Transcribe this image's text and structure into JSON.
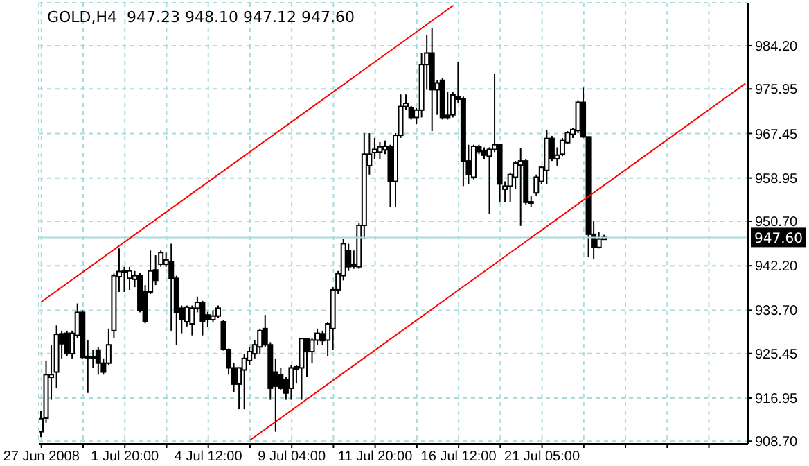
{
  "chart_data": {
    "type": "candlestick",
    "title": "GOLD,H4  947.23 948.10 947.12 947.60",
    "categories": [
      "27 Jun 2008",
      null,
      null,
      null,
      null,
      null,
      null,
      null,
      null,
      null,
      null,
      null,
      null,
      null,
      null,
      null,
      "1 Jul 20:00",
      null,
      null,
      null,
      null,
      null,
      null,
      null,
      null,
      null,
      null,
      null,
      null,
      null,
      null,
      null,
      "4 Jul 12:00",
      null,
      null,
      null,
      null,
      null,
      null,
      null,
      null,
      null,
      null,
      null,
      null,
      null,
      null,
      null,
      "9 Jul 04:00",
      null,
      null,
      null,
      null,
      null,
      null,
      null,
      null,
      null,
      null,
      null,
      null,
      null,
      null,
      null,
      "11 Jul 20:00",
      null,
      null,
      null,
      null,
      null,
      null,
      null,
      null,
      null,
      null,
      null,
      null,
      null,
      null,
      null,
      "16 Jul 12:00",
      null,
      null,
      null,
      null,
      null,
      null,
      null,
      null,
      null,
      null,
      null,
      null,
      null,
      null,
      null,
      "21 Jul 05:00",
      null,
      null,
      null,
      null,
      null,
      null,
      null,
      null,
      null,
      null,
      null,
      null,
      null,
      null,
      null,
      null,
      null,
      null,
      null,
      null,
      null,
      null,
      null,
      null,
      null,
      null,
      null,
      null,
      null,
      null,
      null,
      null,
      null,
      null,
      null,
      null,
      null,
      null,
      null
    ],
    "ohlc": [
      [
        910.5,
        914.5,
        909.5,
        913
      ],
      [
        913.1,
        924.1,
        912.2,
        921.4
      ],
      [
        920.9,
        927.1,
        916.6,
        921.4
      ],
      [
        921.9,
        930.8,
        918.8,
        929.1
      ],
      [
        929.2,
        929.8,
        924.5,
        927.3
      ],
      [
        929.3,
        929.8,
        925,
        925.4
      ],
      [
        925.4,
        929.8,
        924.5,
        929.3
      ],
      [
        928.9,
        935,
        928.4,
        933.3
      ],
      [
        933.3,
        933.7,
        924.5,
        924.7
      ],
      [
        924.9,
        928,
        917.9,
        924.7
      ],
      [
        924.8,
        926.2,
        922.7,
        924.7
      ],
      [
        926.1,
        926.7,
        921.4,
        923.6
      ],
      [
        923.6,
        924.5,
        921.4,
        921.9
      ],
      [
        923.6,
        930.2,
        923.2,
        927.1
      ],
      [
        929.8,
        940.7,
        928.4,
        940.3
      ],
      [
        940.1,
        945.5,
        937.2,
        941.1
      ],
      [
        941.2,
        942,
        937.2,
        941
      ],
      [
        939.8,
        942,
        937.6,
        941.2
      ],
      [
        939.6,
        941.2,
        938.1,
        940.3
      ],
      [
        940.3,
        940.8,
        933.3,
        933.7
      ],
      [
        937.2,
        938.5,
        931.2,
        931.5
      ],
      [
        937.2,
        945.1,
        936.8,
        941.2
      ],
      [
        941.4,
        944.2,
        938.5,
        939.4
      ],
      [
        942.5,
        945.1,
        942,
        944.7
      ],
      [
        942.5,
        944.7,
        942,
        943.3
      ],
      [
        942.9,
        946.4,
        929.8,
        939.8
      ],
      [
        939.8,
        940.3,
        927.1,
        933.3
      ],
      [
        934.1,
        934.6,
        929.3,
        931.9
      ],
      [
        931.5,
        934.6,
        930.6,
        934.3
      ],
      [
        931.1,
        934.6,
        928.9,
        934.1
      ],
      [
        934.1,
        936.3,
        933.3,
        935.2
      ],
      [
        935.2,
        935.5,
        928.9,
        931.5
      ],
      [
        932.8,
        933.4,
        930.5,
        931.9
      ],
      [
        931.9,
        933.7,
        931.5,
        932.6
      ],
      [
        932.6,
        934.6,
        932.2,
        934.1
      ],
      [
        931.5,
        931.8,
        926,
        926.2
      ],
      [
        926.2,
        926.4,
        921.4,
        922.7
      ],
      [
        922.7,
        923.6,
        918.1,
        919.6
      ],
      [
        919.6,
        922.8,
        914.8,
        922.7
      ],
      [
        922.3,
        925.4,
        914.8,
        924.5
      ],
      [
        924.1,
        926.7,
        923.2,
        925.8
      ],
      [
        925.4,
        928,
        924.5,
        927.1
      ],
      [
        926.7,
        930.2,
        925.4,
        929.8
      ],
      [
        930.2,
        932.8,
        926.7,
        927.1
      ],
      [
        927.1,
        927.6,
        916.6,
        918.8
      ],
      [
        921.9,
        924.5,
        910.5,
        919.2
      ],
      [
        921.4,
        922.7,
        918.4,
        918.8
      ],
      [
        920.5,
        921,
        916.6,
        917.9
      ],
      [
        918.8,
        923.2,
        916.6,
        922.7
      ],
      [
        922.5,
        923.2,
        919.7,
        922.9
      ],
      [
        922.7,
        928.4,
        916.6,
        928.3
      ],
      [
        928.2,
        928.4,
        921,
        925.8
      ],
      [
        925.8,
        928.4,
        923.6,
        928
      ],
      [
        928,
        930.2,
        927.1,
        929.3
      ],
      [
        929.2,
        929.8,
        927.1,
        927.9
      ],
      [
        928,
        931.5,
        924.9,
        931.1
      ],
      [
        930.2,
        938.1,
        926.2,
        937.6
      ],
      [
        937.6,
        941.2,
        936.8,
        940.7
      ],
      [
        940.3,
        947.3,
        939.4,
        946.4
      ],
      [
        945.1,
        946.4,
        941.2,
        942
      ],
      [
        942.5,
        945.1,
        941.6,
        942.1
      ],
      [
        942,
        950.4,
        941.6,
        949.9
      ],
      [
        949.9,
        967.5,
        947.4,
        963.5
      ],
      [
        961.3,
        967.5,
        959.6,
        963.5
      ],
      [
        963.8,
        966.6,
        962.6,
        964.4
      ],
      [
        963.9,
        965.8,
        962.6,
        964.9
      ],
      [
        964.3,
        966.1,
        963.5,
        965
      ],
      [
        965,
        965.3,
        953.4,
        958.3
      ],
      [
        958.3,
        967.5,
        953.4,
        967.1
      ],
      [
        967.1,
        974.9,
        966.6,
        972.6
      ],
      [
        972.6,
        974.9,
        971.9,
        973.2
      ],
      [
        972.3,
        972.7,
        970.1,
        970.5
      ],
      [
        970.5,
        972.3,
        969.2,
        971.9
      ],
      [
        971.9,
        982.8,
        970.5,
        980.6
      ],
      [
        980.6,
        986.3,
        975.8,
        982.8
      ],
      [
        982.8,
        987.6,
        967.9,
        975.8
      ],
      [
        975.8,
        977.6,
        971,
        977.1
      ],
      [
        977.6,
        978,
        970.1,
        970.5
      ],
      [
        970.9,
        975.4,
        970.1,
        970.5
      ],
      [
        971,
        975.4,
        970.5,
        974.8
      ],
      [
        974.5,
        981.1,
        973.3,
        974
      ],
      [
        974,
        974.5,
        957.4,
        962.2
      ],
      [
        962.2,
        965.3,
        957.8,
        959.6
      ],
      [
        959.1,
        965.3,
        958.7,
        965
      ],
      [
        965,
        965.3,
        963.5,
        964
      ],
      [
        964.1,
        964.8,
        962.6,
        963.3
      ],
      [
        963.1,
        964.8,
        952.1,
        964.4
      ],
      [
        964.4,
        978.9,
        963.9,
        965.3
      ],
      [
        965.3,
        965.5,
        954.3,
        957.8
      ],
      [
        956.8,
        958.3,
        954.3,
        957.4
      ],
      [
        957.4,
        960,
        954.3,
        959.6
      ],
      [
        959.1,
        962.2,
        956.9,
        961.8
      ],
      [
        961.4,
        964.6,
        949.8,
        962.2
      ],
      [
        962.2,
        962.6,
        953.9,
        954.3
      ],
      [
        954.2,
        955.6,
        953.4,
        954.4
      ],
      [
        956.1,
        959.6,
        955.6,
        959.1
      ],
      [
        958.3,
        961.3,
        957.8,
        961
      ],
      [
        960.4,
        968.1,
        957.8,
        966.5
      ],
      [
        966.5,
        967,
        962.2,
        962.6
      ],
      [
        962.6,
        964.8,
        961.3,
        963.3
      ],
      [
        963.5,
        966.6,
        963.1,
        966.1
      ],
      [
        965.7,
        967.9,
        965.5,
        967.6
      ],
      [
        967.3,
        968.5,
        966.6,
        968.2
      ],
      [
        968,
        973.8,
        967.5,
        973.4
      ],
      [
        973.4,
        976.2,
        966.6,
        966.8
      ],
      [
        966.8,
        966.9,
        943.8,
        948.2
      ],
      [
        948.2,
        950.8,
        943.4,
        945.7
      ],
      [
        945.7,
        948.6,
        945.5,
        947.3
      ],
      [
        947.23,
        948.1,
        947.12,
        947.6
      ],
      null,
      null,
      null,
      null,
      null,
      null,
      null,
      null,
      null,
      null,
      null,
      null,
      null,
      null,
      null,
      null,
      null,
      null,
      null,
      null,
      null,
      null,
      null,
      null,
      null,
      null,
      null
    ],
    "color": "#000000",
    "series": [
      {
        "type": "line",
        "color": "#ff0000",
        "values": [
          935.3,
          null,
          null,
          null,
          null,
          null,
          null,
          null,
          null,
          null,
          null,
          null,
          null,
          null,
          null,
          null,
          null,
          null,
          null,
          null,
          null,
          null,
          null,
          null,
          null,
          null,
          null,
          null,
          null,
          null,
          null,
          null,
          null,
          null,
          null,
          null,
          null,
          null,
          null,
          null,
          null,
          null,
          null,
          null,
          null,
          null,
          null,
          null,
          null,
          null,
          null,
          null,
          null,
          null,
          null,
          null,
          null,
          null,
          null,
          null,
          null,
          null,
          null,
          null,
          null,
          null,
          null,
          null,
          null,
          null,
          null,
          null,
          null,
          null,
          null,
          null,
          null,
          null,
          null,
          991.9,
          null,
          null,
          null,
          null,
          null,
          null,
          null,
          null,
          null,
          null,
          null,
          null,
          null,
          null,
          null,
          null,
          null,
          null,
          null,
          null,
          null,
          null,
          null,
          null,
          null,
          null,
          null,
          null,
          null,
          null,
          null,
          null,
          null,
          null,
          null,
          null,
          null,
          null,
          null,
          null,
          null,
          null,
          null,
          null,
          null,
          null,
          null,
          null,
          null,
          null,
          null,
          null,
          null,
          null,
          null,
          null
        ]
      },
      {
        "type": "line",
        "color": "#ff0000",
        "values": [
          null,
          null,
          null,
          null,
          null,
          null,
          null,
          null,
          null,
          null,
          null,
          null,
          null,
          null,
          null,
          null,
          null,
          null,
          null,
          null,
          null,
          null,
          null,
          null,
          null,
          null,
          null,
          null,
          null,
          null,
          null,
          null,
          null,
          null,
          null,
          null,
          null,
          null,
          null,
          null,
          908.9,
          null,
          null,
          null,
          null,
          null,
          null,
          null,
          null,
          null,
          null,
          null,
          null,
          null,
          null,
          null,
          null,
          null,
          null,
          null,
          null,
          null,
          null,
          null,
          null,
          null,
          null,
          null,
          null,
          null,
          null,
          null,
          null,
          null,
          null,
          null,
          null,
          null,
          null,
          null,
          null,
          null,
          null,
          null,
          null,
          null,
          null,
          null,
          null,
          null,
          null,
          null,
          null,
          null,
          null,
          null,
          null,
          null,
          null,
          null,
          null,
          null,
          null,
          null,
          null,
          null,
          null,
          null,
          null,
          null,
          null,
          null,
          null,
          null,
          null,
          null,
          null,
          null,
          null,
          null,
          null,
          null,
          null,
          null,
          null,
          null,
          null,
          null,
          null,
          null,
          null,
          null,
          null,
          null,
          null,
          977.0
        ]
      }
    ],
    "ylim": [
      908.2,
      992.4
    ],
    "yticks": [
      {
        "value": 908.7,
        "label": "908.70"
      },
      916.95,
      925.45,
      {
        "value": 933.7,
        "label": "933.70"
      },
      {
        "value": 942.2,
        "label": "942.20"
      },
      {
        "value": 950.7,
        "label": "950.70"
      },
      958.95,
      967.45,
      975.95,
      {
        "value": 984.2,
        "label": "984.20"
      }
    ],
    "ref_lines": [
      {
        "axis": "y",
        "value": 947.6,
        "label": "947.60",
        "color": "#a8dcdc"
      }
    ],
    "grid": true
  }
}
